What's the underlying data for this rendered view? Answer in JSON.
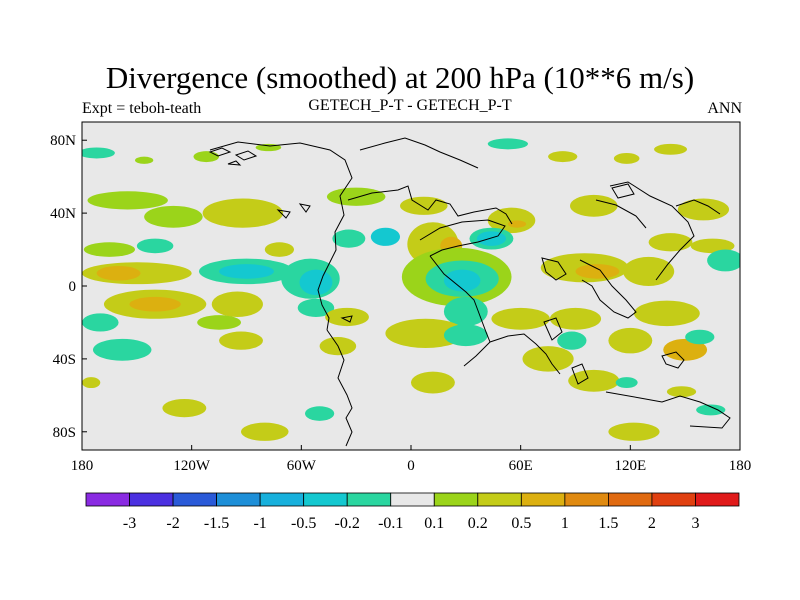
{
  "title": "Divergence (smoothed) at 200 hPa (10**6 m/s)",
  "subtitle_left": "Expt = teboh-teath",
  "subtitle_center": "GETECH_P-T - GETECH_P-T",
  "subtitle_right": "ANN",
  "chart_data": {
    "type": "heatmap",
    "variable": "Divergence (smoothed) at 200 hPa",
    "units": "10**6 m/s",
    "projection": "cylindrical equidistant",
    "x_range": [
      -180,
      180
    ],
    "y_range": [
      -90,
      90
    ],
    "x_ticks": [
      -180,
      -120,
      -60,
      0,
      60,
      120,
      180
    ],
    "x_tick_labels": [
      "180",
      "120W",
      "60W",
      "0",
      "60E",
      "120E",
      "180"
    ],
    "y_ticks": [
      80,
      40,
      0,
      -40,
      -80
    ],
    "y_tick_labels": [
      "80N",
      "40N",
      "0",
      "40S",
      "80S"
    ],
    "colorbar": {
      "labels": [
        "-3",
        "-2",
        "-1.5",
        "-1",
        "-0.5",
        "-0.2",
        "-0.1",
        "0.1",
        "0.2",
        "0.5",
        "1",
        "1.5",
        "2",
        "3"
      ],
      "colors": [
        "#8a2be2",
        "#4b30e0",
        "#2a5ad8",
        "#1e8fd8",
        "#17b0dc",
        "#14c8d0",
        "#2ad6a0",
        "#e8e8e8",
        "#9bd41a",
        "#c4cc18",
        "#dcb010",
        "#e08a10",
        "#e06a10",
        "#e04010",
        "#e01a1a"
      ]
    },
    "regions": [
      {
        "lon": -172,
        "lat": 73,
        "rx": 10,
        "ry": 3,
        "level": "-0.1"
      },
      {
        "lon": -146,
        "lat": 69,
        "rx": 5,
        "ry": 2,
        "level": "0.1"
      },
      {
        "lon": -112,
        "lat": 71,
        "rx": 7,
        "ry": 3,
        "level": "0.1"
      },
      {
        "lon": -78,
        "lat": 76,
        "rx": 7,
        "ry": 2,
        "level": "0.1"
      },
      {
        "lon": 53,
        "lat": 78,
        "rx": 11,
        "ry": 3,
        "level": "-0.1"
      },
      {
        "lon": 83,
        "lat": 71,
        "rx": 8,
        "ry": 3,
        "level": "0.2"
      },
      {
        "lon": 118,
        "lat": 70,
        "rx": 7,
        "ry": 3,
        "level": "0.2"
      },
      {
        "lon": 142,
        "lat": 75,
        "rx": 9,
        "ry": 3,
        "level": "0.2"
      },
      {
        "lon": -155,
        "lat": 47,
        "rx": 22,
        "ry": 5,
        "level": "0.1"
      },
      {
        "lon": -92,
        "lat": 40,
        "rx": 22,
        "ry": 8,
        "level": "0.2"
      },
      {
        "lon": -130,
        "lat": 38,
        "rx": 16,
        "ry": 6,
        "level": "0.1"
      },
      {
        "lon": -30,
        "lat": 49,
        "rx": 16,
        "ry": 5,
        "level": "0.1"
      },
      {
        "lon": 7,
        "lat": 44,
        "rx": 13,
        "ry": 5,
        "level": "0.2"
      },
      {
        "lon": 55,
        "lat": 36,
        "rx": 13,
        "ry": 7,
        "level": "0.2"
      },
      {
        "lon": 58,
        "lat": 34,
        "rx": 5,
        "ry": 2,
        "level": "0.5"
      },
      {
        "lon": 100,
        "lat": 44,
        "rx": 13,
        "ry": 6,
        "level": "0.2"
      },
      {
        "lon": 160,
        "lat": 42,
        "rx": 14,
        "ry": 6,
        "level": "0.2"
      },
      {
        "lon": -165,
        "lat": 20,
        "rx": 14,
        "ry": 4,
        "level": "0.1"
      },
      {
        "lon": -140,
        "lat": 22,
        "rx": 10,
        "ry": 4,
        "level": "-0.1"
      },
      {
        "lon": -72,
        "lat": 20,
        "rx": 8,
        "ry": 4,
        "level": "0.2"
      },
      {
        "lon": -34,
        "lat": 26,
        "rx": 9,
        "ry": 5,
        "level": "-0.1"
      },
      {
        "lon": -14,
        "lat": 27,
        "rx": 8,
        "ry": 5,
        "level": "-0.2"
      },
      {
        "lon": 12,
        "lat": 23,
        "rx": 14,
        "ry": 12,
        "level": "0.2"
      },
      {
        "lon": 22,
        "lat": 22,
        "rx": 6,
        "ry": 5,
        "level": "0.5"
      },
      {
        "lon": 44,
        "lat": 26,
        "rx": 12,
        "ry": 6,
        "level": "-0.1"
      },
      {
        "lon": 44,
        "lat": 26,
        "rx": 8,
        "ry": 4,
        "level": "-0.2"
      },
      {
        "lon": 142,
        "lat": 24,
        "rx": 12,
        "ry": 5,
        "level": "0.2"
      },
      {
        "lon": 165,
        "lat": 22,
        "rx": 12,
        "ry": 4,
        "level": "0.2"
      },
      {
        "lon": -150,
        "lat": 7,
        "rx": 30,
        "ry": 6,
        "level": "0.2"
      },
      {
        "lon": -160,
        "lat": 7,
        "rx": 12,
        "ry": 4,
        "level": "0.5"
      },
      {
        "lon": -90,
        "lat": 8,
        "rx": 26,
        "ry": 7,
        "level": "-0.1"
      },
      {
        "lon": -90,
        "lat": 8,
        "rx": 15,
        "ry": 4,
        "level": "-0.2"
      },
      {
        "lon": -55,
        "lat": 4,
        "rx": 16,
        "ry": 11,
        "level": "-0.1"
      },
      {
        "lon": -52,
        "lat": 2,
        "rx": 9,
        "ry": 7,
        "level": "-0.2"
      },
      {
        "lon": 25,
        "lat": 5,
        "rx": 30,
        "ry": 16,
        "level": "0.1"
      },
      {
        "lon": 28,
        "lat": 4,
        "rx": 20,
        "ry": 10,
        "level": "-0.1"
      },
      {
        "lon": 28,
        "lat": 3,
        "rx": 10,
        "ry": 6,
        "level": "-0.2"
      },
      {
        "lon": 95,
        "lat": 10,
        "rx": 24,
        "ry": 8,
        "level": "0.2"
      },
      {
        "lon": 102,
        "lat": 8,
        "rx": 12,
        "ry": 4,
        "level": "0.5"
      },
      {
        "lon": 130,
        "lat": 8,
        "rx": 14,
        "ry": 8,
        "level": "0.2"
      },
      {
        "lon": 172,
        "lat": 14,
        "rx": 10,
        "ry": 6,
        "level": "-0.1"
      },
      {
        "lon": -140,
        "lat": -10,
        "rx": 28,
        "ry": 8,
        "level": "0.2"
      },
      {
        "lon": -140,
        "lat": -10,
        "rx": 14,
        "ry": 4,
        "level": "0.5"
      },
      {
        "lon": -95,
        "lat": -10,
        "rx": 14,
        "ry": 7,
        "level": "0.2"
      },
      {
        "lon": -52,
        "lat": -12,
        "rx": 10,
        "ry": 5,
        "level": "-0.1"
      },
      {
        "lon": -35,
        "lat": -17,
        "rx": 12,
        "ry": 5,
        "level": "0.2"
      },
      {
        "lon": 30,
        "lat": -14,
        "rx": 12,
        "ry": 8,
        "level": "-0.1"
      },
      {
        "lon": 60,
        "lat": -18,
        "rx": 16,
        "ry": 6,
        "level": "0.2"
      },
      {
        "lon": 90,
        "lat": -18,
        "rx": 14,
        "ry": 6,
        "level": "0.2"
      },
      {
        "lon": 140,
        "lat": -15,
        "rx": 18,
        "ry": 7,
        "level": "0.2"
      },
      {
        "lon": -170,
        "lat": -20,
        "rx": 10,
        "ry": 5,
        "level": "-0.1"
      },
      {
        "lon": -105,
        "lat": -20,
        "rx": 12,
        "ry": 4,
        "level": "0.1"
      },
      {
        "lon": -158,
        "lat": -35,
        "rx": 16,
        "ry": 6,
        "level": "-0.1"
      },
      {
        "lon": -93,
        "lat": -30,
        "rx": 12,
        "ry": 5,
        "level": "0.2"
      },
      {
        "lon": -40,
        "lat": -33,
        "rx": 10,
        "ry": 5,
        "level": "0.2"
      },
      {
        "lon": 8,
        "lat": -26,
        "rx": 22,
        "ry": 8,
        "level": "0.2"
      },
      {
        "lon": 30,
        "lat": -27,
        "rx": 12,
        "ry": 6,
        "level": "-0.1"
      },
      {
        "lon": 75,
        "lat": -40,
        "rx": 14,
        "ry": 7,
        "level": "0.2"
      },
      {
        "lon": 88,
        "lat": -30,
        "rx": 8,
        "ry": 5,
        "level": "-0.1"
      },
      {
        "lon": 120,
        "lat": -30,
        "rx": 12,
        "ry": 7,
        "level": "0.2"
      },
      {
        "lon": 150,
        "lat": -35,
        "rx": 12,
        "ry": 6,
        "level": "0.5"
      },
      {
        "lon": 158,
        "lat": -28,
        "rx": 8,
        "ry": 4,
        "level": "-0.1"
      },
      {
        "lon": -175,
        "lat": -53,
        "rx": 5,
        "ry": 3,
        "level": "0.2"
      },
      {
        "lon": -124,
        "lat": -67,
        "rx": 12,
        "ry": 5,
        "level": "0.2"
      },
      {
        "lon": -80,
        "lat": -80,
        "rx": 13,
        "ry": 5,
        "level": "0.2"
      },
      {
        "lon": -50,
        "lat": -70,
        "rx": 8,
        "ry": 4,
        "level": "-0.1"
      },
      {
        "lon": 12,
        "lat": -53,
        "rx": 12,
        "ry": 6,
        "level": "0.2"
      },
      {
        "lon": 100,
        "lat": -52,
        "rx": 14,
        "ry": 6,
        "level": "0.2"
      },
      {
        "lon": 118,
        "lat": -53,
        "rx": 6,
        "ry": 3,
        "level": "-0.1"
      },
      {
        "lon": 148,
        "lat": -58,
        "rx": 8,
        "ry": 3,
        "level": "0.2"
      },
      {
        "lon": 164,
        "lat": -68,
        "rx": 8,
        "ry": 3,
        "level": "-0.1"
      },
      {
        "lon": 122,
        "lat": -80,
        "rx": 14,
        "ry": 5,
        "level": "0.2"
      }
    ]
  }
}
